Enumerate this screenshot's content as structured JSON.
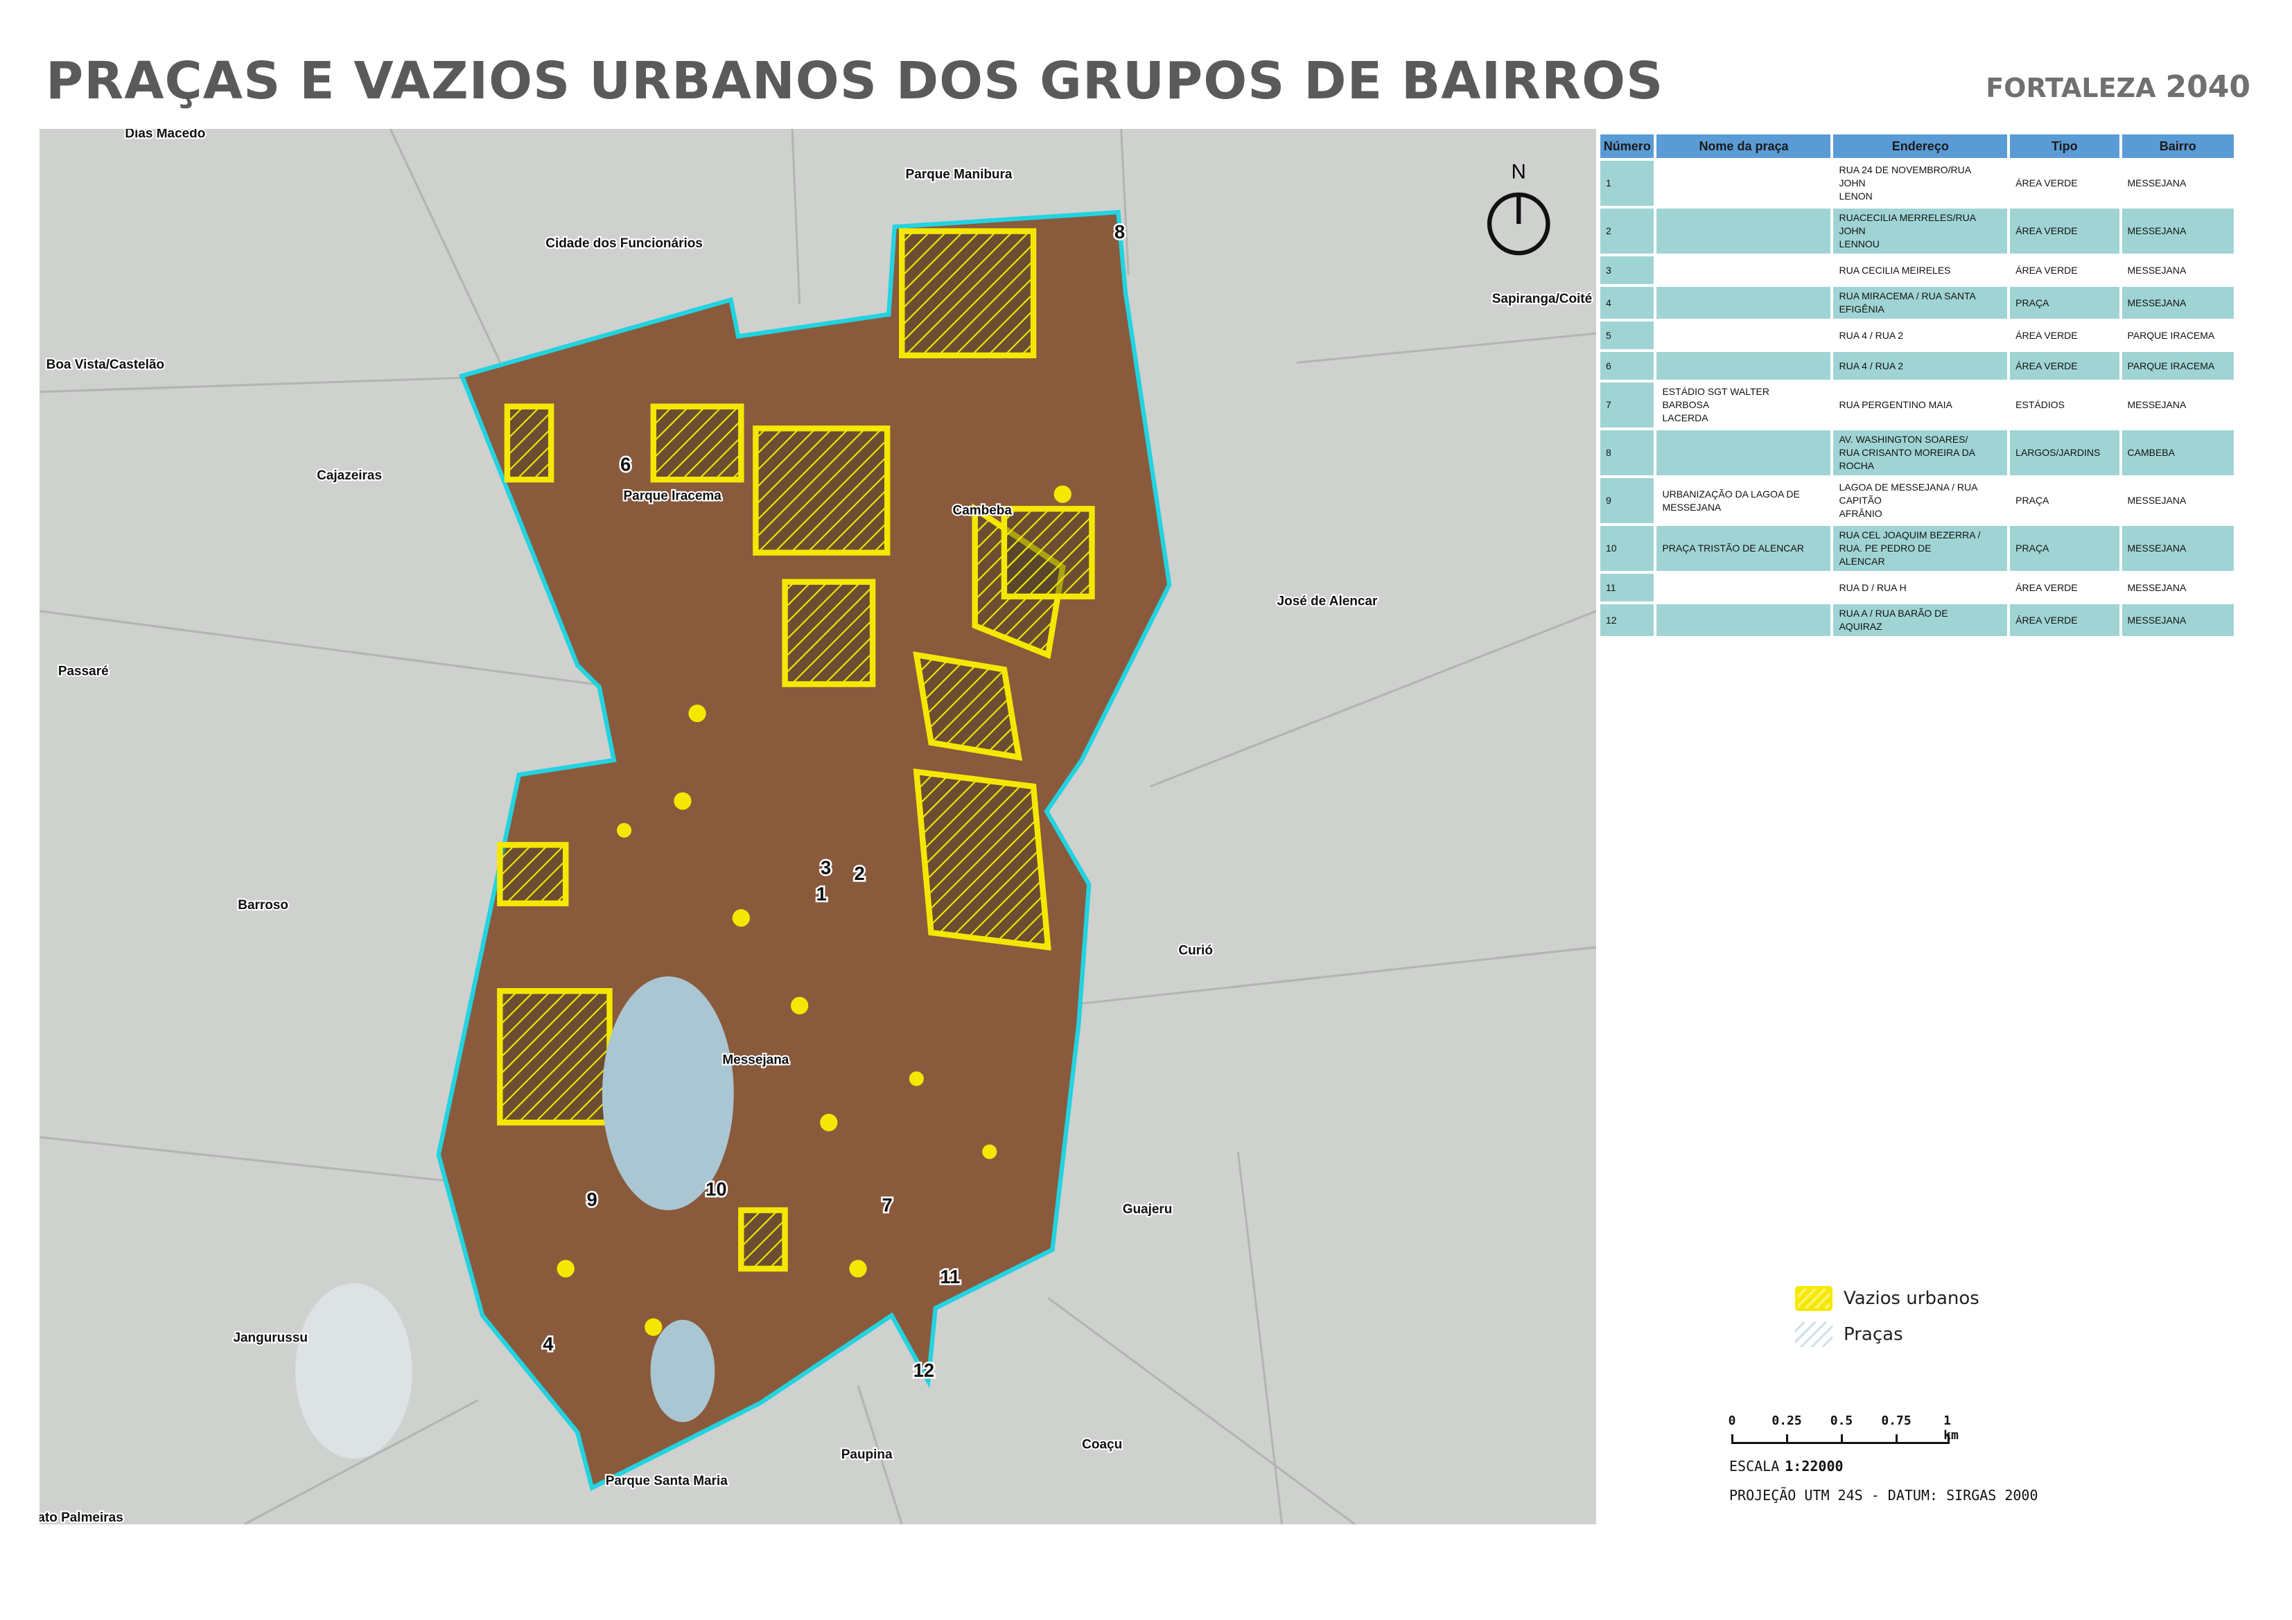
{
  "header": {
    "title": "PRAÇAS E VAZIOS URBANOS DOS GRUPOS DE BAIRROS",
    "brand_name": "FORTALEZA",
    "brand_year": "2040"
  },
  "map": {
    "north_label": "N",
    "colors": {
      "vazios": "#f5e800",
      "boundary": "#22d3e0",
      "background": "#cfd1cf",
      "urban": "#8a5a3c"
    },
    "neighborhoods": [
      "Dias Macedo",
      "Parque Manibura",
      "Cidade dos Funcionários",
      "Sapiranga/Coité",
      "Boa Vista/Castelão",
      "Cajazeiras",
      "Parque Iracema",
      "Cambeba",
      "José de Alencar",
      "Passaré",
      "Barroso",
      "Curió",
      "Messejana",
      "Guajeru",
      "Jangurussu",
      "Paupina",
      "Coaçu",
      "Parque Santa Maria",
      "ato Palmeiras"
    ],
    "markers": [
      "8",
      "6",
      "3",
      "2",
      "1",
      "9",
      "10",
      "7",
      "11",
      "4",
      "12"
    ]
  },
  "table": {
    "headers": [
      "Número",
      "Nome da praça",
      "Endereço",
      "Tipo",
      "Bairro"
    ],
    "rows": [
      [
        "1",
        "",
        "RUA 24 DE NOVEMBRO/RUA\nJOHN\nLENON",
        "ÁREA VERDE",
        "MESSEJANA"
      ],
      [
        "2",
        "",
        "RUACECILIA MERRELES/RUA\nJOHN\nLENNOU",
        "ÁREA VERDE",
        "MESSEJANA"
      ],
      [
        "3",
        "",
        "RUA CECILIA MEIRELES",
        "ÁREA VERDE",
        "MESSEJANA"
      ],
      [
        "4",
        "",
        "RUA MIRACEMA / RUA SANTA\nEFIGÊNIA",
        "PRAÇA",
        "MESSEJANA"
      ],
      [
        "5",
        "",
        "RUA 4 / RUA 2",
        "ÁREA VERDE",
        "PARQUE IRACEMA"
      ],
      [
        "6",
        "",
        "RUA 4 / RUA 2",
        "ÁREA VERDE",
        "PARQUE IRACEMA"
      ],
      [
        "7",
        "ESTÁDIO SGT WALTER\nBARBOSA\nLACERDA",
        "RUA PERGENTINO MAIA",
        "ESTÁDIOS",
        "MESSEJANA"
      ],
      [
        "8",
        "",
        "AV. WASHINGTON SOARES/\nRUA CRISANTO MOREIRA DA\nROCHA",
        "LARGOS/JARDINS",
        "CAMBEBA"
      ],
      [
        "9",
        "URBANIZAÇÃO DA LAGOA DE\nMESSEJANA",
        "LAGOA DE MESSEJANA / RUA\nCAPITÃO\nAFRÂNIO",
        "PRAÇA",
        "MESSEJANA"
      ],
      [
        "10",
        "PRAÇA TRISTÃO DE ALENCAR",
        "RUA CEL JOAQUIM BEZERRA /\nRUA. PE PEDRO DE\nALENCAR",
        "PRAÇA",
        "MESSEJANA"
      ],
      [
        "11",
        "",
        "RUA D / RUA H",
        "ÁREA VERDE",
        "MESSEJANA"
      ],
      [
        "12",
        "",
        "RUA A / RUA BARÃO DE\nAQUIRAZ",
        "ÁREA VERDE",
        "MESSEJANA"
      ]
    ]
  },
  "legend": {
    "items": [
      {
        "label": "Vazios urbanos",
        "color": "#f5e800"
      },
      {
        "label": "Praças",
        "color": "#cfe0ea"
      }
    ]
  },
  "scale": {
    "ticks": [
      "0",
      "0.25",
      "0.5",
      "0.75",
      "1 km"
    ],
    "label": "ESCALA",
    "ratio": "1:22000",
    "projection": "PROJEÇÃO UTM 24S - DATUM: SIRGAS 2000"
  }
}
